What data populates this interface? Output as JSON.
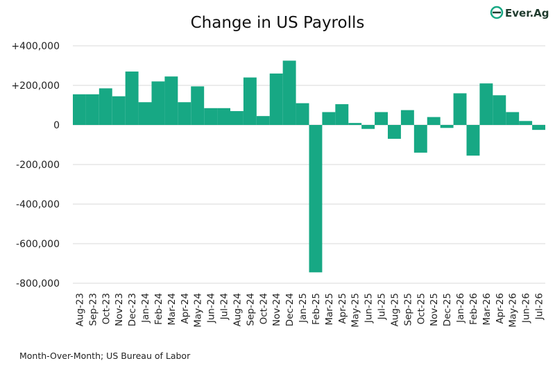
{
  "chart_data": {
    "type": "bar",
    "title": "Change in US Payrolls",
    "xlabel": "",
    "ylabel": "",
    "ylim": [
      -800000,
      400000
    ],
    "yticks": [
      400000,
      200000,
      0,
      -200000,
      -400000,
      -600000,
      -800000
    ],
    "ytick_labels": [
      "+400,000",
      "+200,000",
      "0",
      "-200,000",
      "-400,000",
      "-600,000",
      "-800,000"
    ],
    "grid": true,
    "bar_color": "#17a884",
    "categories": [
      "Aug-23",
      "Sep-23",
      "Oct-23",
      "Nov-23",
      "Dec-23",
      "Jan-24",
      "Feb-24",
      "Mar-24",
      "Apr-24",
      "May-24",
      "Jun-24",
      "Jul-24",
      "Aug-24",
      "Sep-24",
      "Oct-24",
      "Nov-24",
      "Dec-24",
      "Jan-25",
      "Feb-25",
      "Mar-25",
      "Apr-25",
      "May-25",
      "Jun-25",
      "Jul-25",
      "Aug-25",
      "Sep-25",
      "Oct-25",
      "Nov-25",
      "Dec-25",
      "Jan-26",
      "Feb-26",
      "Mar-26",
      "Apr-26",
      "May-26",
      "Jun-26",
      "Jul-26"
    ],
    "values": [
      155000,
      155000,
      185000,
      145000,
      270000,
      115000,
      220000,
      245000,
      115000,
      195000,
      85000,
      85000,
      70000,
      240000,
      45000,
      260000,
      325000,
      110000,
      -745000,
      65000,
      105000,
      10000,
      -20000,
      65000,
      -70000,
      75000,
      -140000,
      40000,
      -15000,
      160000,
      -155000,
      210000,
      150000,
      65000,
      20000,
      -25000
    ]
  },
  "footnote": "Month-Over-Month; US Bureau of Labor",
  "logo": {
    "text": "Ever.Ag",
    "color": "#1f3b2e",
    "accent": "#17a884"
  }
}
